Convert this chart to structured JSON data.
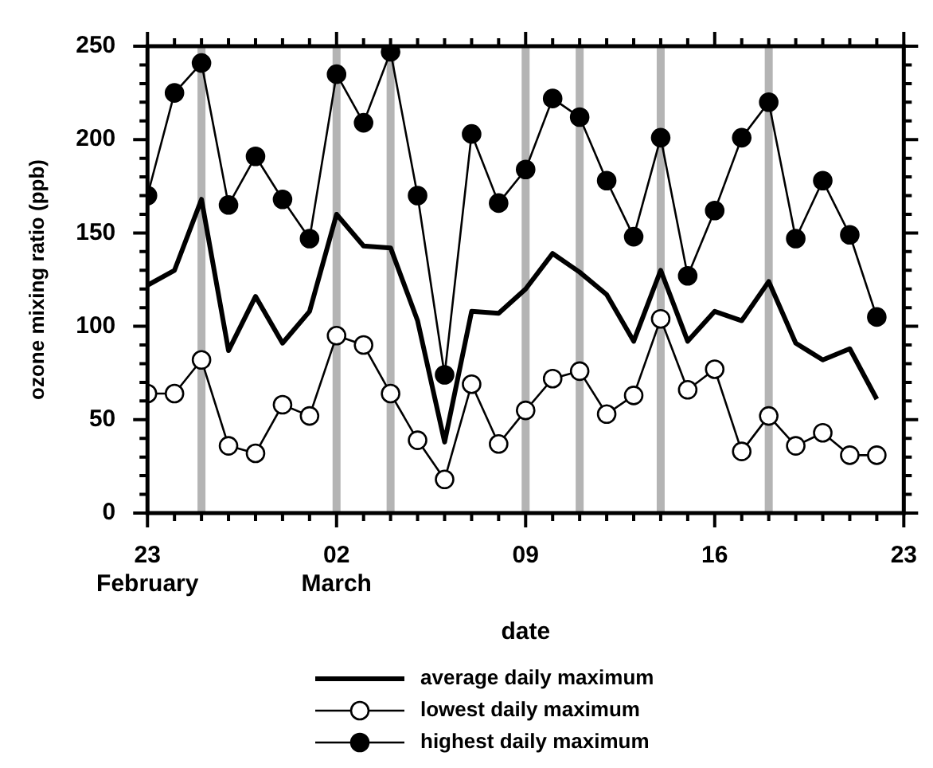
{
  "chart_data": {
    "type": "line",
    "xlabel": "date",
    "ylabel": "ozone mixing ratio (ppb)",
    "legend": "bottom",
    "x": [
      "--02-23",
      "--02-24",
      "--02-25",
      "--02-26",
      "--02-27",
      "--02-28",
      "--03-01",
      "--03-02",
      "--03-03",
      "--03-04",
      "--03-05",
      "--03-06",
      "--03-07",
      "--03-08",
      "--03-09",
      "--03-10",
      "--03-11",
      "--03-12",
      "--03-13",
      "--03-14",
      "--03-15",
      "--03-16",
      "--03-17",
      "--03-18",
      "--03-19",
      "--03-20",
      "--03-21",
      "--03-22"
    ],
    "series": [
      {
        "name": "average daily maximum",
        "color": "#000000",
        "marker": "none",
        "values": [
          122,
          130,
          168,
          87,
          116,
          91,
          108,
          160,
          143,
          142,
          103,
          38,
          108,
          107,
          120,
          139,
          129,
          117,
          92,
          130,
          92,
          108,
          103,
          124,
          91,
          82,
          88,
          61
        ]
      },
      {
        "name": "lowest daily maximum",
        "color": "#000000",
        "marker": "circle",
        "values": [
          64,
          64,
          82,
          36,
          32,
          58,
          52,
          95,
          90,
          64,
          39,
          18,
          69,
          37,
          55,
          72,
          76,
          53,
          63,
          104,
          66,
          77,
          33,
          52,
          36,
          43,
          31,
          31
        ]
      },
      {
        "name": "highest daily maximum",
        "color": "#000000",
        "marker": "circle",
        "values": [
          170,
          225,
          241,
          165,
          191,
          168,
          147,
          235,
          209,
          247,
          170,
          74,
          203,
          166,
          184,
          222,
          212,
          178,
          148,
          201,
          127,
          162,
          201,
          220,
          147,
          178,
          149,
          105
        ]
      }
    ],
    "xlim": [
      "--02-23",
      "--03-23"
    ],
    "xticks": [
      {
        "value": "--02-23",
        "label": "23\nFebruary"
      },
      {
        "value": "--02-24",
        "label": null
      },
      {
        "value": "--02-25",
        "label": null
      },
      {
        "value": "--02-26",
        "label": null
      },
      {
        "value": "--02-27",
        "label": null
      },
      {
        "value": "--02-28",
        "label": null
      },
      {
        "value": "--03-01",
        "label": null
      },
      {
        "value": "--03-02",
        "label": "02\nMarch"
      },
      {
        "value": "--03-03",
        "label": null
      },
      {
        "value": "--03-04",
        "label": null
      },
      {
        "value": "--03-05",
        "label": null
      },
      {
        "value": "--03-06",
        "label": null
      },
      {
        "value": "--03-07",
        "label": null
      },
      {
        "value": "--03-08",
        "label": null
      },
      {
        "value": "--03-09",
        "label": "09"
      },
      {
        "value": "--03-10",
        "label": null
      },
      {
        "value": "--03-11",
        "label": null
      },
      {
        "value": "--03-12",
        "label": null
      },
      {
        "value": "--03-13",
        "label": null
      },
      {
        "value": "--03-14",
        "label": null
      },
      {
        "value": "--03-15",
        "label": null
      },
      {
        "value": "--03-16",
        "label": "16"
      },
      {
        "value": "--03-17",
        "label": null
      },
      {
        "value": "--03-18",
        "label": null
      },
      {
        "value": "--03-19",
        "label": null
      },
      {
        "value": "--03-20",
        "label": null
      },
      {
        "value": "--03-21",
        "label": null
      },
      {
        "value": "--03-22",
        "label": null
      },
      {
        "value": "--03-23",
        "label": "23"
      }
    ],
    "ylim": [
      0,
      250
    ],
    "yticks": [
      0,
      {
        "value": 10,
        "label": null
      },
      {
        "value": 20,
        "label": null
      },
      {
        "value": 30,
        "label": null
      },
      {
        "value": 40,
        "label": null
      },
      50,
      {
        "value": 60,
        "label": null
      },
      {
        "value": 70,
        "label": null
      },
      {
        "value": 80,
        "label": null
      },
      {
        "value": 90,
        "label": null
      },
      100,
      {
        "value": 110,
        "label": null
      },
      {
        "value": 120,
        "label": null
      },
      {
        "value": 130,
        "label": null
      },
      {
        "value": 140,
        "label": null
      },
      150,
      {
        "value": 160,
        "label": null
      },
      {
        "value": 170,
        "label": null
      },
      {
        "value": 180,
        "label": null
      },
      {
        "value": 190,
        "label": null
      },
      200,
      {
        "value": 210,
        "label": null
      },
      {
        "value": 220,
        "label": null
      },
      {
        "value": 230,
        "label": null
      },
      {
        "value": 240,
        "label": null
      },
      250
    ],
    "ref_lines": [
      {
        "axis": "x",
        "value": "--02-25",
        "color": "#b4b4b4"
      },
      {
        "axis": "x",
        "value": "--03-02",
        "color": "#b4b4b4"
      },
      {
        "axis": "x",
        "value": "--03-04",
        "color": "#b4b4b4"
      },
      {
        "axis": "x",
        "value": "--03-09",
        "color": "#b4b4b4"
      },
      {
        "axis": "x",
        "value": "--03-11",
        "color": "#b4b4b4"
      },
      {
        "axis": "x",
        "value": "--03-14",
        "color": "#b4b4b4"
      },
      {
        "axis": "x",
        "value": "--03-18",
        "color": "#b4b4b4"
      }
    ]
  }
}
